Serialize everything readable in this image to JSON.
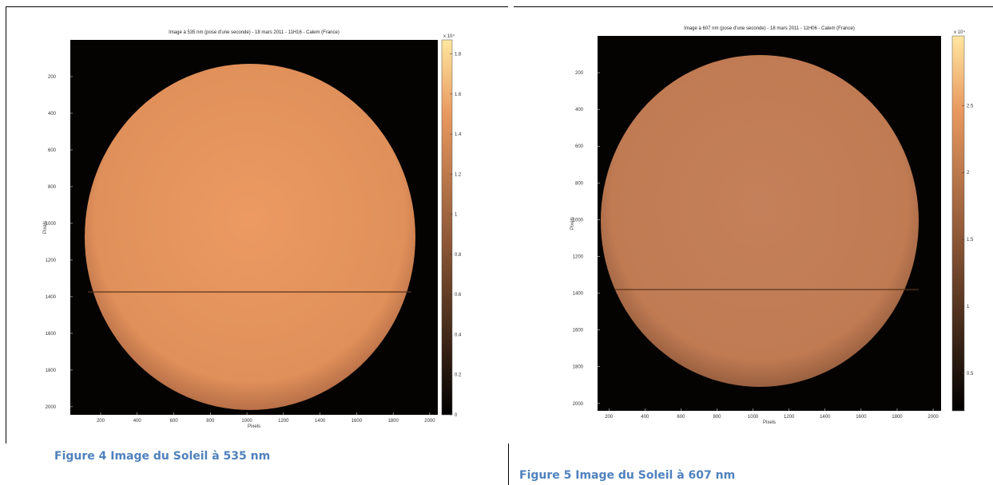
{
  "figures": [
    {
      "title": "Image à 535 nm (pose d'une seconde) - 18 mars 2011 - 11H16 - Calem (France)",
      "xlabel": "Pixels",
      "ylabel": "Pixels",
      "xlim": [
        34,
        2044
      ],
      "xticks": [
        200,
        400,
        600,
        800,
        1000,
        1200,
        1400,
        1600,
        1800,
        2000
      ],
      "ylim": [
        0,
        2044
      ],
      "yticks": [
        200,
        400,
        600,
        800,
        1000,
        1200,
        1400,
        1600,
        1800,
        2000
      ],
      "clim": [
        0,
        1.87
      ],
      "cticks": [
        0,
        0.2,
        0.4,
        0.6,
        0.8,
        1,
        1.2,
        1.4,
        1.6,
        1.8
      ],
      "cexponent": "x 10⁴",
      "caption": "Figure 4  Image du Soleil à 535 nm"
    },
    {
      "title": "Image à 607 nm (pose d'une seconde) - 18 mars 2011 - 11H06 - Calem (France)",
      "xlabel": "Pixels",
      "ylabel": "Pixels",
      "xlim": [
        137,
        2044
      ],
      "xticks": [
        200,
        400,
        600,
        800,
        1000,
        1200,
        1400,
        1600,
        1800,
        2000
      ],
      "ylim": [
        0,
        2040
      ],
      "yticks": [
        200,
        400,
        600,
        800,
        1000,
        1200,
        1400,
        1600,
        1800,
        2000
      ],
      "clim": [
        0.22,
        3.02
      ],
      "cticks": [
        0.5,
        1,
        1.5,
        2,
        2.5
      ],
      "cexponent": "x 10⁴",
      "caption": "Figure 5 Image du Soleil à 607 nm"
    }
  ]
}
